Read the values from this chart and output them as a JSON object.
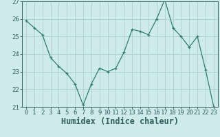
{
  "x": [
    0,
    1,
    2,
    3,
    4,
    5,
    6,
    7,
    8,
    9,
    10,
    11,
    12,
    13,
    14,
    15,
    16,
    17,
    18,
    19,
    20,
    21,
    22,
    23
  ],
  "y": [
    25.9,
    25.5,
    25.1,
    23.8,
    23.3,
    22.9,
    22.3,
    21.1,
    22.3,
    23.2,
    23.0,
    23.2,
    24.1,
    25.4,
    25.3,
    25.1,
    26.0,
    27.1,
    25.5,
    25.0,
    24.4,
    25.0,
    23.1,
    21.0
  ],
  "xlabel": "Humidex (Indice chaleur)",
  "ylim": [
    21,
    27
  ],
  "xlim": [
    -0.5,
    23.5
  ],
  "yticks": [
    21,
    22,
    23,
    24,
    25,
    26,
    27
  ],
  "xticks": [
    0,
    1,
    2,
    3,
    4,
    5,
    6,
    7,
    8,
    9,
    10,
    11,
    12,
    13,
    14,
    15,
    16,
    17,
    18,
    19,
    20,
    21,
    22,
    23
  ],
  "line_color": "#2e7d6e",
  "marker": "+",
  "bg_color": "#ceeaea",
  "grid_color": "#afd4d4",
  "text_color": "#2e6060",
  "axis_color": "#2e6060",
  "tick_label_fontsize": 6.5,
  "xlabel_fontsize": 8.5
}
